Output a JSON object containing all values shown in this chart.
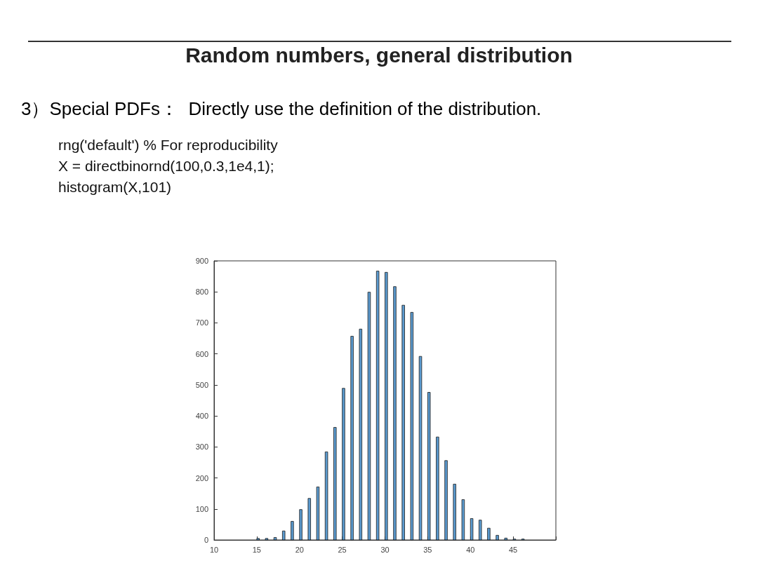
{
  "chart_data": {
    "type": "histogram",
    "title": "Random numbers, general distribution",
    "subtitle": "3）Special PDFs：  Directly use the definition of the distribution.",
    "annotations": [
      "rng('default') % For reproducibility",
      "X = directbinornd(100,0.3,1e4,1);",
      "histogram(X,101)"
    ],
    "bins": [
      15,
      15.3,
      16,
      16.3,
      17,
      17.3,
      18,
      18.3,
      19,
      19.3,
      20,
      20.3,
      21,
      21.3,
      22,
      22.3,
      23,
      23.3,
      24,
      24.3,
      25,
      25.3,
      26,
      26.3,
      27,
      27.3,
      28,
      28.3,
      29,
      29.3,
      30,
      30.3,
      31,
      31.3,
      32,
      32.3,
      33,
      33.3,
      34,
      34.3,
      35,
      35.3,
      36,
      36.3,
      37,
      37.3,
      38,
      38.3,
      39,
      39.3,
      40,
      40.3,
      41,
      41.3,
      42,
      42.3,
      43,
      43.3,
      44,
      44.3,
      45,
      45.3,
      46,
      46.3
    ],
    "values": [
      5,
      0,
      5,
      0,
      8,
      0,
      29,
      0,
      60,
      0,
      98,
      0,
      134,
      0,
      171,
      0,
      284,
      0,
      363,
      0,
      489,
      0,
      657,
      0,
      680,
      0,
      799,
      0,
      867,
      0,
      863,
      0,
      817,
      0,
      757,
      0,
      734,
      0,
      592,
      0,
      476,
      0,
      332,
      0,
      256,
      0,
      180,
      0,
      130,
      0,
      69,
      0,
      64,
      0,
      38,
      0,
      15,
      0,
      6,
      0,
      3,
      0,
      3
    ],
    "color": "#5b9bd0",
    "xlim": [
      10,
      50
    ],
    "xticks": [
      10,
      15,
      20,
      25,
      30,
      35,
      40,
      45,
      {
        "value": 50,
        "label": null
      }
    ],
    "ylim": [
      0,
      900
    ],
    "yticks": [
      0,
      100,
      200,
      300,
      400,
      500,
      600,
      700,
      800,
      900
    ]
  }
}
